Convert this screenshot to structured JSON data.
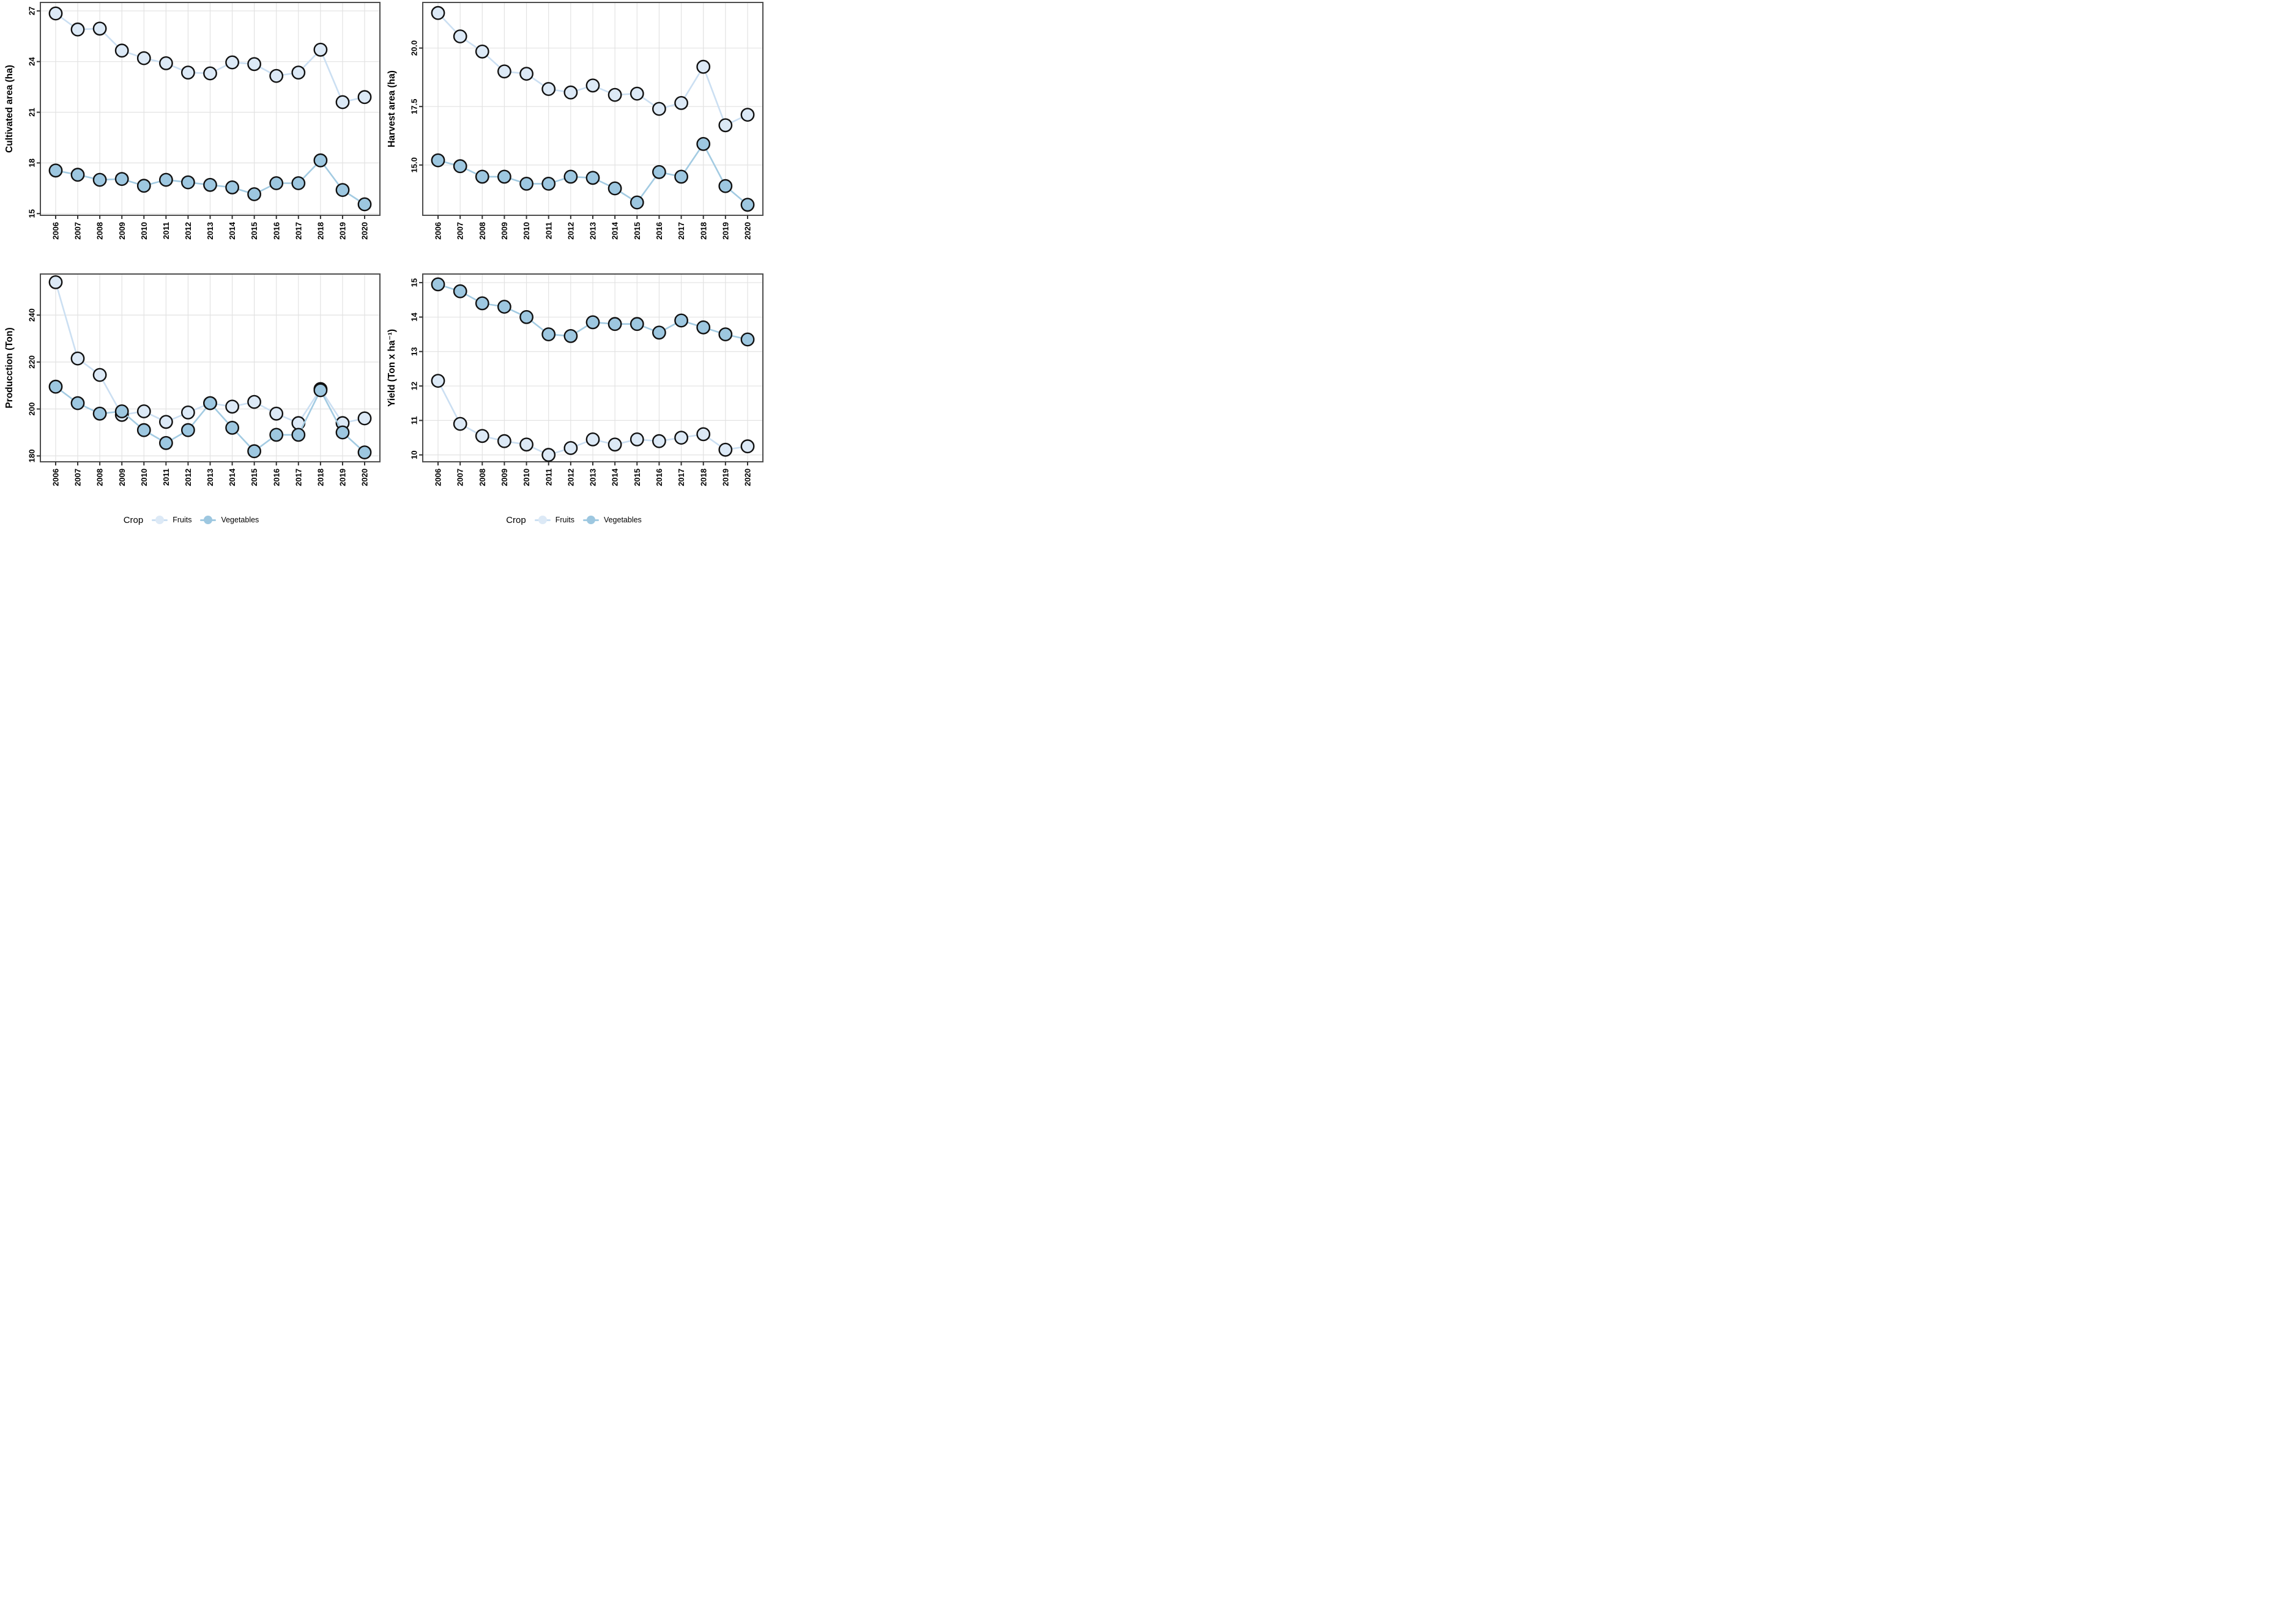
{
  "figure": {
    "background": "#ffffff",
    "description": "Four-panel line chart of crop statistics 2006-2020 for Fruits and Vegetables"
  },
  "colors": {
    "fruits_marker": "#dce9f6",
    "fruits_line": "#cbdff2",
    "vegetables_marker": "#9dc7e0",
    "vegetables_line": "#a3cbe2",
    "marker_outline": "#111111",
    "gridline": "#e2e2e2",
    "panel_border": "#4d4d4d",
    "tick": "#333333",
    "text": "#000000"
  },
  "years": [
    2006,
    2007,
    2008,
    2009,
    2010,
    2011,
    2012,
    2013,
    2014,
    2015,
    2016,
    2017,
    2018,
    2019,
    2020
  ],
  "legend": {
    "title": "Crop",
    "position": "bottom",
    "items": [
      {
        "label": "Fruits",
        "marker_color": "#dce9f6",
        "line_color": "#cbdff2"
      },
      {
        "label": "Vegetables",
        "marker_color": "#9dc7e0",
        "line_color": "#a3cbe2"
      }
    ]
  },
  "chart_data": [
    {
      "id": "cultivated-area",
      "type": "line",
      "position": "top-left",
      "row": "top",
      "title": "",
      "xlabel": "",
      "ylabel": "Cultivated area (ha)",
      "categories": [
        2006,
        2007,
        2008,
        2009,
        2010,
        2011,
        2012,
        2013,
        2014,
        2015,
        2016,
        2017,
        2018,
        2019,
        2020
      ],
      "yticks": [
        15,
        18,
        21,
        24,
        27
      ],
      "ytick_labels": [
        "15",
        "18",
        "21",
        "24",
        "27"
      ],
      "ylim": [
        14.9,
        27.5
      ],
      "grid": true,
      "series": [
        {
          "name": "Fruits",
          "values": [
            26.85,
            25.9,
            25.95,
            24.65,
            24.2,
            23.9,
            23.35,
            23.3,
            23.95,
            23.85,
            23.15,
            23.35,
            24.7,
            21.6,
            21.9
          ]
        },
        {
          "name": "Vegetables",
          "values": [
            17.55,
            17.3,
            17.0,
            17.05,
            16.65,
            17.0,
            16.85,
            16.7,
            16.55,
            16.15,
            16.8,
            16.8,
            18.15,
            16.4,
            15.55
          ]
        }
      ]
    },
    {
      "id": "harvest-area",
      "type": "line",
      "position": "top-right",
      "row": "top",
      "title": "",
      "xlabel": "",
      "ylabel": "Harvest area (ha)",
      "categories": [
        2006,
        2007,
        2008,
        2009,
        2010,
        2011,
        2012,
        2013,
        2014,
        2015,
        2016,
        2017,
        2018,
        2019,
        2020
      ],
      "yticks": [
        15.0,
        17.5,
        20.0
      ],
      "ytick_labels": [
        "15.0",
        "17.5",
        "20.0"
      ],
      "ylim": [
        12.85,
        21.95
      ],
      "grid": true,
      "series": [
        {
          "name": "Fruits",
          "values": [
            21.5,
            20.5,
            19.85,
            19.0,
            18.9,
            18.25,
            18.1,
            18.4,
            18.0,
            18.05,
            17.4,
            17.65,
            19.2,
            16.7,
            17.15
          ]
        },
        {
          "name": "Vegetables",
          "values": [
            15.2,
            14.95,
            14.5,
            14.5,
            14.2,
            14.2,
            14.5,
            14.45,
            14.0,
            13.4,
            14.7,
            14.5,
            15.9,
            14.1,
            13.3
          ]
        }
      ]
    },
    {
      "id": "production",
      "type": "line",
      "position": "bottom-left",
      "row": "bottom",
      "title": "",
      "xlabel": "",
      "ylabel": "Producction (Ton)",
      "categories": [
        2006,
        2007,
        2008,
        2009,
        2010,
        2011,
        2012,
        2013,
        2014,
        2015,
        2016,
        2017,
        2018,
        2019,
        2020
      ],
      "yticks": [
        180,
        200,
        220,
        240
      ],
      "ytick_labels": [
        "180",
        "200",
        "220",
        "240"
      ],
      "ylim": [
        177.5,
        257.5
      ],
      "grid": true,
      "series": [
        {
          "name": "Fruits",
          "values": [
            254,
            221.5,
            214.5,
            197.5,
            199,
            194.5,
            198.5,
            202.5,
            201,
            203,
            198,
            194,
            208.5,
            194,
            196
          ]
        },
        {
          "name": "Vegetables",
          "values": [
            209.5,
            202.5,
            198,
            199,
            191,
            185.5,
            191,
            202.5,
            192,
            182,
            189,
            189,
            208,
            190,
            181.5
          ]
        }
      ]
    },
    {
      "id": "yield",
      "type": "line",
      "position": "bottom-right",
      "row": "bottom",
      "title": "",
      "xlabel": "",
      "ylabel": "Yield (Ton x ha⁻¹)",
      "categories": [
        2006,
        2007,
        2008,
        2009,
        2010,
        2011,
        2012,
        2013,
        2014,
        2015,
        2016,
        2017,
        2018,
        2019,
        2020
      ],
      "yticks": [
        10,
        11,
        12,
        13,
        14,
        15
      ],
      "ytick_labels": [
        "10",
        "11",
        "12",
        "13",
        "14",
        "15"
      ],
      "ylim": [
        9.8,
        15.25
      ],
      "grid": true,
      "series": [
        {
          "name": "Fruits",
          "values": [
            12.15,
            10.9,
            10.55,
            10.4,
            10.3,
            10.0,
            10.2,
            10.45,
            10.3,
            10.45,
            10.4,
            10.5,
            10.6,
            10.15,
            10.25
          ]
        },
        {
          "name": "Vegetables",
          "values": [
            14.95,
            14.75,
            14.4,
            14.3,
            14.0,
            13.5,
            13.45,
            13.85,
            13.8,
            13.8,
            13.55,
            13.9,
            13.7,
            13.5,
            13.35
          ]
        }
      ]
    }
  ]
}
